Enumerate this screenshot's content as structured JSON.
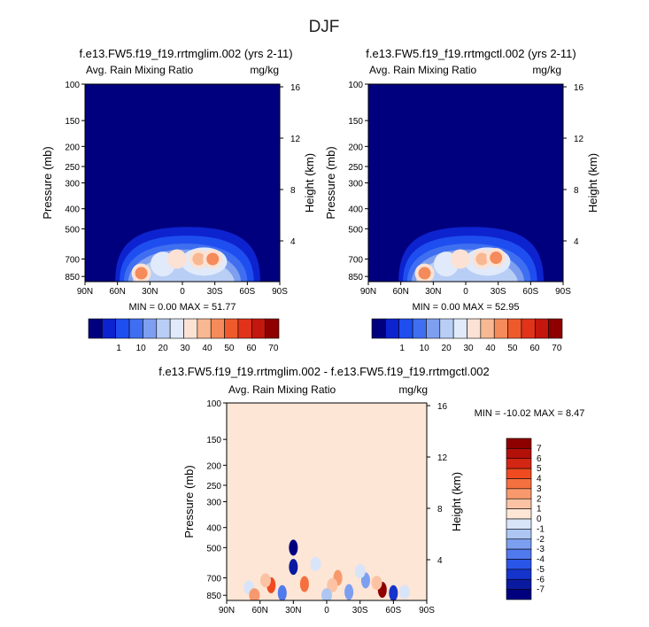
{
  "page_title": "DJF",
  "chart_data": [
    {
      "type": "heatmap",
      "case_title": "f.e13.FW5.f19_f19.rrtmglim.002 (yrs 2-11)",
      "title": "Avg. Rain Mixing Ratio",
      "units": "mg/kg",
      "ylabel": "Pressure (mb)",
      "y2label": "Height (km)",
      "x_ticks": [
        "90N",
        "60N",
        "30N",
        "0",
        "30S",
        "60S",
        "90S"
      ],
      "y_ticks": [
        "100",
        "150",
        "200",
        "250",
        "300",
        "400",
        "500",
        "700",
        "850"
      ],
      "y2_ticks": [
        "16",
        "12",
        "8",
        "4"
      ],
      "stats": {
        "min_label": "MIN =",
        "min": "0.00",
        "max_label": "MAX =",
        "max": "51.77"
      },
      "colorbar": {
        "labels": [
          "1",
          "10",
          "20",
          "30",
          "40",
          "50",
          "60",
          "70"
        ],
        "colors": [
          "#00007f",
          "#0d23cf",
          "#1e4ef0",
          "#3f6ff0",
          "#7e9ef0",
          "#b8cef5",
          "#e0eafb",
          "#fbe2d4",
          "#f8b892",
          "#f58a5a",
          "#ef5a2c",
          "#e0331a",
          "#c4170e",
          "#8e0000"
        ]
      },
      "blobs": [
        {
          "lat": 38,
          "p": 820,
          "v": 45
        },
        {
          "lat": -15,
          "p": 700,
          "v": 30
        },
        {
          "lat": -28,
          "p": 700,
          "v": 40
        },
        {
          "lat": 5,
          "p": 700,
          "v": 20
        }
      ]
    },
    {
      "type": "heatmap",
      "case_title": "f.e13.FW5.f19_f19.rrtmgctl.002 (yrs 2-11)",
      "title": "Avg. Rain Mixing Ratio",
      "units": "mg/kg",
      "ylabel": "Pressure (mb)",
      "y2label": "Height (km)",
      "x_ticks": [
        "90N",
        "60N",
        "30N",
        "0",
        "30S",
        "60S",
        "90S"
      ],
      "y_ticks": [
        "100",
        "150",
        "200",
        "250",
        "300",
        "400",
        "500",
        "700",
        "850"
      ],
      "y2_ticks": [
        "16",
        "12",
        "8",
        "4"
      ],
      "stats": {
        "min_label": "MIN =",
        "min": "0.00",
        "max_label": "MAX =",
        "max": "52.95"
      },
      "colorbar": {
        "labels": [
          "1",
          "10",
          "20",
          "30",
          "40",
          "50",
          "60",
          "70"
        ],
        "colors": [
          "#00007f",
          "#0d23cf",
          "#1e4ef0",
          "#3f6ff0",
          "#7e9ef0",
          "#b8cef5",
          "#e0eafb",
          "#fbe2d4",
          "#f8b892",
          "#f58a5a",
          "#ef5a2c",
          "#e0331a",
          "#c4170e",
          "#8e0000"
        ]
      },
      "blobs": [
        {
          "lat": 38,
          "p": 820,
          "v": 45
        },
        {
          "lat": -15,
          "p": 700,
          "v": 30
        },
        {
          "lat": -28,
          "p": 690,
          "v": 40
        },
        {
          "lat": 5,
          "p": 700,
          "v": 20
        }
      ]
    },
    {
      "type": "heatmap",
      "case_title": "f.e13.FW5.f19_f19.rrtmglim.002 - f.e13.FW5.f19_f19.rrtmgctl.002",
      "title": "Avg. Rain Mixing Ratio",
      "units": "mg/kg",
      "ylabel": "Pressure (mb)",
      "y2label": "Height (km)",
      "x_ticks": [
        "90N",
        "60N",
        "30N",
        "0",
        "30S",
        "60S",
        "90S"
      ],
      "y_ticks": [
        "100",
        "150",
        "200",
        "250",
        "300",
        "400",
        "500",
        "700",
        "850"
      ],
      "y2_ticks": [
        "16",
        "12",
        "8",
        "4"
      ],
      "stats": {
        "min_label": "MIN =",
        "min": "-10.02",
        "max_label": "MAX =",
        "max": "8.47"
      },
      "colorbar": {
        "labels": [
          "7",
          "6",
          "5",
          "4",
          "3",
          "2",
          "1",
          "0",
          "-1",
          "-2",
          "-3",
          "-4",
          "-5",
          "-6",
          "-7"
        ],
        "colors": [
          "#8e0000",
          "#b3100a",
          "#d42614",
          "#ef4a20",
          "#f5703f",
          "#f8996d",
          "#fbc3a4",
          "#fde6d6",
          "#d8e4f8",
          "#adc6f2",
          "#7d9ff0",
          "#5079ee",
          "#2a55e8",
          "#1534cc",
          "#0a1aa0",
          "#00007f"
        ]
      },
      "blobs": [
        {
          "lat": 30,
          "p": 500,
          "v": -9
        },
        {
          "lat": 30,
          "p": 620,
          "v": -7
        },
        {
          "lat": -50,
          "p": 800,
          "v": 7
        },
        {
          "lat": -60,
          "p": 830,
          "v": -6
        },
        {
          "lat": 50,
          "p": 760,
          "v": 4
        },
        {
          "lat": 40,
          "p": 830,
          "v": -4
        },
        {
          "lat": 20,
          "p": 750,
          "v": 3
        },
        {
          "lat": -20,
          "p": 820,
          "v": -3
        },
        {
          "lat": -10,
          "p": 700,
          "v": 2
        },
        {
          "lat": -35,
          "p": 720,
          "v": -3
        }
      ]
    }
  ]
}
